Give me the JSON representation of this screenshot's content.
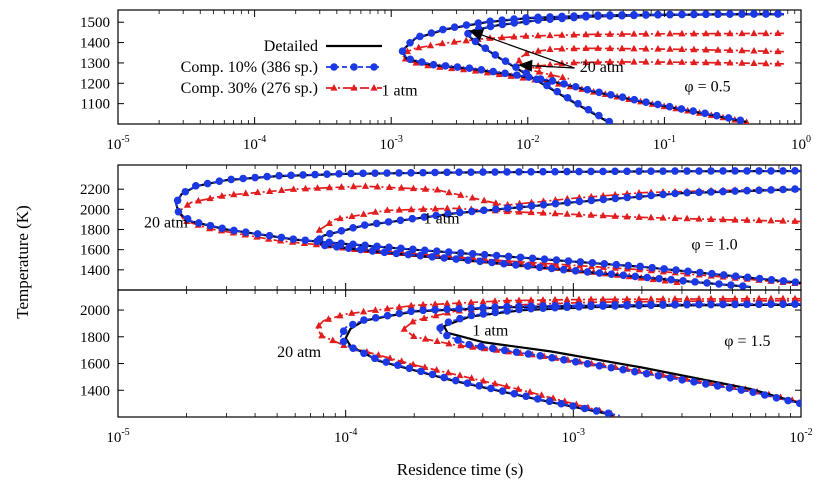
{
  "colors": {
    "detailed": "#000000",
    "comp10": "#1c39e6",
    "comp30": "#e21d1d"
  },
  "figure": {
    "xlabel": "Residence time (s)",
    "ylabel": "Temperature (K)"
  },
  "legend": [
    {
      "label": "Detailed",
      "series": "detailed",
      "line": "solid",
      "marker": "none"
    },
    {
      "label": "Comp. 10% (386 sp.)",
      "series": "comp10",
      "line": "dashed",
      "marker": "circle"
    },
    {
      "label": "Comp. 30% (276 sp.)",
      "series": "comp30",
      "line": "dashdot",
      "marker": "triangle"
    }
  ],
  "chart_data": [
    {
      "type": "line",
      "panel": "top",
      "log_x": true,
      "xlim": [
        1e-05,
        1
      ],
      "ylim": [
        1000,
        1560
      ],
      "x_ticks": [
        {
          "v": 1e-05,
          "b": "10",
          "e": "-5"
        },
        {
          "v": 0.0001,
          "b": "10",
          "e": "-4"
        },
        {
          "v": 0.001,
          "b": "10",
          "e": "-3"
        },
        {
          "v": 0.01,
          "b": "10",
          "e": "-2"
        },
        {
          "v": 0.1,
          "b": "10",
          "e": "-1"
        },
        {
          "v": 1,
          "b": "10",
          "e": "0"
        }
      ],
      "y_ticks": [
        1100,
        1200,
        1300,
        1400,
        1500
      ],
      "annotations": [
        {
          "text": "1 atm",
          "x": 0.00085,
          "y": 1140
        },
        {
          "text": "20 atm",
          "x": 0.024,
          "y": 1255
        },
        {
          "text": "φ = 0.5",
          "x": 0.14,
          "y": 1160
        }
      ],
      "arrows": [
        {
          "from": [
            0.022,
            1275
          ],
          "to": [
            0.0037,
            1460
          ]
        },
        {
          "from": [
            0.022,
            1275
          ],
          "to": [
            0.0085,
            1290
          ]
        }
      ],
      "series": [
        {
          "series": "detailed",
          "line": "solid",
          "curves": [
            {
              "x": [
                0.75,
                0.3,
                0.1,
                0.03,
                0.01,
                0.005,
                0.0025,
                0.0015,
                0.0012,
                0.0013,
                0.002,
                0.004,
                0.008,
                0.015,
                0.03,
                0.08,
                0.2,
                0.4
              ],
              "y": [
                1540,
                1539,
                1537,
                1533,
                1520,
                1500,
                1465,
                1420,
                1360,
                1320,
                1290,
                1270,
                1240,
                1210,
                1160,
                1100,
                1050,
                1010
              ]
            },
            {
              "x": [
                0.75,
                0.3,
                0.1,
                0.03,
                0.012,
                0.006,
                0.004,
                0.0036,
                0.0042,
                0.006,
                0.01,
                0.02,
                0.04
              ],
              "y": [
                1540,
                1539,
                1536,
                1528,
                1510,
                1485,
                1460,
                1440,
                1400,
                1330,
                1240,
                1120,
                1005
              ]
            }
          ]
        },
        {
          "series": "comp10",
          "line": "dashed",
          "curves": [
            {
              "x": [
                0.75,
                0.3,
                0.1,
                0.03,
                0.01,
                0.005,
                0.0025,
                0.0015,
                0.0012,
                0.0013,
                0.002,
                0.004,
                0.008,
                0.015,
                0.03,
                0.08,
                0.2,
                0.4
              ],
              "y": [
                1541,
                1540,
                1538,
                1534,
                1522,
                1503,
                1468,
                1423,
                1362,
                1322,
                1292,
                1272,
                1242,
                1212,
                1162,
                1102,
                1052,
                1012
              ]
            },
            {
              "x": [
                0.75,
                0.3,
                0.1,
                0.03,
                0.012,
                0.006,
                0.004,
                0.0036,
                0.0042,
                0.006,
                0.01,
                0.02,
                0.04
              ],
              "y": [
                1541,
                1540,
                1537,
                1529,
                1511,
                1486,
                1462,
                1442,
                1402,
                1332,
                1245,
                1125,
                1010
              ]
            }
          ]
        },
        {
          "series": "comp30",
          "line": "dashdot",
          "curves": [
            {
              "x": [
                0.75,
                0.3,
                0.1,
                0.03,
                0.01,
                0.005,
                0.0025,
                0.0015,
                0.0012,
                0.0013,
                0.002,
                0.004,
                0.008,
                0.015,
                0.03,
                0.08,
                0.2,
                0.4
              ],
              "y": [
                1445,
                1444,
                1443,
                1440,
                1432,
                1420,
                1398,
                1372,
                1345,
                1310,
                1282,
                1262,
                1232,
                1204,
                1158,
                1098,
                1048,
                1008
              ]
            },
            {
              "x": [
                0.75,
                0.3,
                0.1,
                0.03,
                0.015,
                0.01,
                0.0085,
                0.009,
                0.011,
                0.015,
                0.02
              ],
              "y": [
                1355,
                1362,
                1368,
                1372,
                1368,
                1350,
                1320,
                1290,
                1262,
                1240,
                1222
              ]
            },
            {
              "x": [
                0.75,
                0.3,
                0.1,
                0.04,
                0.02,
                0.012,
                0.01,
                0.009
              ],
              "y": [
                1295,
                1300,
                1304,
                1305,
                1300,
                1285,
                1268,
                1255
              ]
            }
          ]
        }
      ]
    },
    {
      "type": "line",
      "panel": "middle",
      "log_x": true,
      "xlim": [
        1e-05,
        0.01
      ],
      "ylim": [
        1200,
        2440
      ],
      "x_ticks": [],
      "y_ticks": [
        1400,
        1600,
        1800,
        2000,
        2200
      ],
      "annotations": [
        {
          "text": "20 atm",
          "x": 1.3e-05,
          "y": 1820
        },
        {
          "text": "1 atm",
          "x": 0.00022,
          "y": 1860
        },
        {
          "text": "φ = 1.0",
          "x": 0.0033,
          "y": 1600
        }
      ],
      "arrows": [],
      "series": [
        {
          "series": "detailed",
          "line": "solid",
          "curves": [
            {
              "x": [
                0.01,
                0.003,
                0.001,
                0.0003,
                0.0001,
                5e-05,
                3e-05,
                2.2e-05,
                1.9e-05,
                1.8e-05,
                1.85e-05,
                2.1e-05,
                3e-05,
                6e-05,
                0.0002,
                0.0006,
                0.002,
                0.01
              ],
              "y": [
                2380,
                2378,
                2373,
                2366,
                2352,
                2330,
                2290,
                2230,
                2150,
                2060,
                1960,
                1880,
                1800,
                1700,
                1600,
                1520,
                1430,
                1270
              ]
            },
            {
              "x": [
                0.01,
                0.003,
                0.001,
                0.0003,
                0.00012,
                8e-05,
                7.5e-05,
                8e-05,
                0.00015,
                0.0004,
                0.001,
                0.003,
                0.006
              ],
              "y": [
                2200,
                2160,
                2070,
                1960,
                1840,
                1740,
                1680,
                1640,
                1570,
                1480,
                1390,
                1290,
                1230
              ]
            }
          ]
        },
        {
          "series": "comp10",
          "line": "dashed",
          "curves": [
            {
              "x": [
                0.01,
                0.003,
                0.001,
                0.0003,
                0.0001,
                5e-05,
                3e-05,
                2.2e-05,
                1.9e-05,
                1.8e-05,
                1.85e-05,
                2.1e-05,
                3e-05,
                6e-05,
                0.0002,
                0.0006,
                0.002,
                0.01
              ],
              "y": [
                2382,
                2380,
                2375,
                2368,
                2355,
                2333,
                2293,
                2234,
                2153,
                2063,
                1962,
                1882,
                1802,
                1702,
                1602,
                1522,
                1432,
                1272
              ]
            },
            {
              "x": [
                0.01,
                0.003,
                0.001,
                0.0003,
                0.00012,
                8e-05,
                7.5e-05,
                8e-05,
                0.00015,
                0.0004,
                0.001,
                0.003,
                0.006
              ],
              "y": [
                2203,
                2163,
                2073,
                1963,
                1843,
                1743,
                1683,
                1643,
                1572,
                1482,
                1392,
                1292,
                1232
              ]
            }
          ]
        },
        {
          "series": "comp30",
          "line": "dashdot",
          "curves": [
            {
              "x": [
                0.01,
                0.005,
                0.002,
                0.001,
                0.0005,
                0.00025,
                0.00012,
                6e-05,
                3e-05,
                2.1e-05,
                1.85e-05,
                1.95e-05,
                2.5e-05,
                5e-05,
                0.00015,
                0.0005,
                0.002,
                0.01
              ],
              "y": [
                2200,
                2190,
                2165,
                2110,
                2040,
                2195,
                2230,
                2200,
                2140,
                2070,
                1980,
                1890,
                1810,
                1690,
                1580,
                1490,
                1400,
                1260
              ]
            },
            {
              "x": [
                0.01,
                0.005,
                0.002,
                0.001,
                0.0005,
                0.0003,
                0.00015,
                9e-05,
                7.5e-05,
                7.8e-05,
                0.0001,
                0.0003,
                0.001,
                0.003
              ],
              "y": [
                1880,
                1895,
                1920,
                1950,
                1980,
                2010,
                1990,
                1900,
                1780,
                1680,
                1610,
                1520,
                1400,
                1270
              ]
            }
          ]
        }
      ]
    },
    {
      "type": "line",
      "panel": "bottom",
      "log_x": true,
      "xlim": [
        1e-05,
        0.01
      ],
      "ylim": [
        1200,
        2150
      ],
      "x_ticks": [
        {
          "v": 1e-05,
          "b": "10",
          "e": "-5"
        },
        {
          "v": 0.0001,
          "b": "10",
          "e": "-4"
        },
        {
          "v": 0.001,
          "b": "10",
          "e": "-3"
        },
        {
          "v": 0.01,
          "b": "10",
          "e": "-2"
        }
      ],
      "y_ticks": [
        1400,
        1600,
        1800,
        2000
      ],
      "annotations": [
        {
          "text": "20 atm",
          "x": 5e-05,
          "y": 1650
        },
        {
          "text": "1 atm",
          "x": 0.00036,
          "y": 1810
        },
        {
          "text": "φ = 1.5",
          "x": 0.0046,
          "y": 1730
        }
      ],
      "arrows": [],
      "series": [
        {
          "series": "detailed",
          "line": "solid",
          "curves": [
            {
              "x": [
                0.01,
                0.003,
                0.001,
                0.0005,
                0.0002,
                0.00012,
                0.000105,
                0.0001,
                0.000105,
                0.00014,
                0.0003,
                0.0007,
                0.0015
              ],
              "y": [
                2040,
                2038,
                2030,
                2020,
                1990,
                1920,
                1860,
                1790,
                1730,
                1620,
                1470,
                1330,
                1215
              ]
            },
            {
              "x": [
                0.01,
                0.003,
                0.0012,
                0.0006,
                0.00035,
                0.00027,
                0.00028,
                0.0004,
                0.0008,
                0.002,
                0.006,
                0.01
              ],
              "y": [
                2040,
                2035,
                2022,
                2000,
                1950,
                1880,
                1830,
                1760,
                1690,
                1570,
                1410,
                1300
              ]
            }
          ]
        },
        {
          "series": "comp10",
          "line": "dashed",
          "curves": [
            {
              "x": [
                0.01,
                0.003,
                0.001,
                0.0005,
                0.0002,
                0.00012,
                0.0001,
                9.5e-05,
                0.0001,
                0.00014,
                0.0003,
                0.0007,
                0.0016
              ],
              "y": [
                2045,
                2043,
                2035,
                2025,
                1995,
                1925,
                1870,
                1800,
                1740,
                1625,
                1475,
                1335,
                1210
              ]
            },
            {
              "x": [
                0.01,
                0.003,
                0.0012,
                0.0006,
                0.00035,
                0.00026,
                0.00026,
                0.00035,
                0.0007,
                0.002,
                0.006,
                0.01
              ],
              "y": [
                2045,
                2040,
                2028,
                2008,
                1958,
                1890,
                1830,
                1740,
                1660,
                1530,
                1390,
                1300
              ]
            }
          ]
        },
        {
          "series": "comp30",
          "line": "dashdot",
          "curves": [
            {
              "x": [
                0.01,
                0.003,
                0.001,
                0.0005,
                0.0002,
                0.0001,
                8e-05,
                7.5e-05,
                7.8e-05,
                0.0001,
                0.0002,
                0.0006,
                0.0015
              ],
              "y": [
                2085,
                2083,
                2078,
                2070,
                2035,
                1970,
                1920,
                1870,
                1810,
                1730,
                1590,
                1400,
                1220
              ]
            },
            {
              "x": [
                0.01,
                0.003,
                0.0012,
                0.0006,
                0.0003,
                0.0002,
                0.00018,
                0.0002,
                0.0003,
                0.0007,
                0.002,
                0.006,
                0.01
              ],
              "y": [
                2070,
                2066,
                2058,
                2040,
                1990,
                1920,
                1860,
                1800,
                1740,
                1660,
                1540,
                1400,
                1310
              ]
            }
          ]
        }
      ]
    }
  ]
}
